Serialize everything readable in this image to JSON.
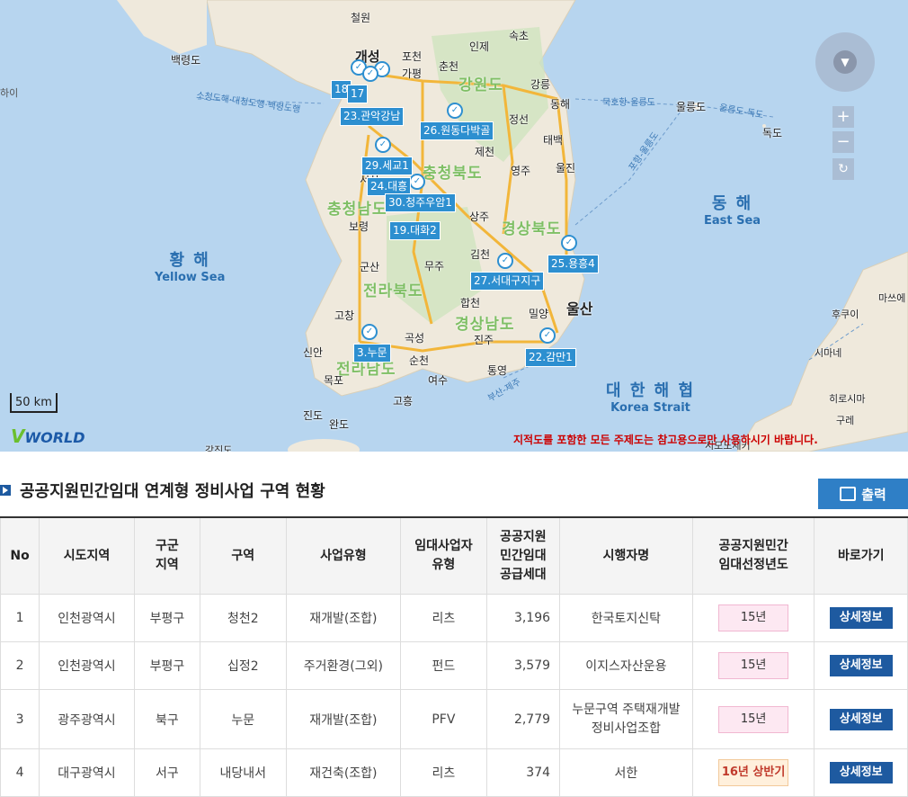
{
  "map": {
    "cities": [
      "철원",
      "개성",
      "포천",
      "인제",
      "속초",
      "가평",
      "춘천",
      "백령도",
      "강릉",
      "동해",
      "정선",
      "태백",
      "울진",
      "영주",
      "제천",
      "서산",
      "보령",
      "상주",
      "김천",
      "무주",
      "군산",
      "합천",
      "밀양",
      "울산",
      "고창",
      "곡성",
      "진주",
      "신안",
      "순천",
      "통영",
      "목포",
      "여수",
      "고흥",
      "진도",
      "완도",
      "울릉도",
      "독도",
      "마쓰에",
      "후쿠이",
      "시마네",
      "히로시마",
      "구레",
      "시모노세키",
      "강진도"
    ],
    "regions": [
      "강원도",
      "충청북도",
      "충청남도",
      "경상북도",
      "전라북도",
      "경상남도",
      "전라남도"
    ],
    "seas": [
      {
        "ko": "황 해",
        "en": "Yellow Sea"
      },
      {
        "ko": "동 해",
        "en": "East Sea"
      },
      {
        "ko": "대 한 해 협",
        "en": "Korea Strait"
      }
    ],
    "sea_routes": [
      "소청도해·대청도행·백령도행",
      "묵호항-울릉도",
      "울릉도-독도",
      "포항-울릉도",
      "부산-제주",
      "하이"
    ],
    "markers": [
      "18",
      "17",
      "23.관악강남",
      "26.원동다박골",
      "29.세교1",
      "24.대흥",
      "30.청주우암1",
      "19.대화2",
      "25.용흥4",
      "27.서대구지구",
      "3.누문",
      "22.감만1"
    ],
    "scale_label": "50 km",
    "logo": "VWORLD",
    "notice": "지적도를 포함한 모든 주제도는 참고용으로만 사용하시기 바랍니다."
  },
  "section": {
    "title": "공공지원민간임대 연계형 정비사업 구역 현황",
    "print_label": "출력"
  },
  "table": {
    "headers": [
      "No",
      "시도지역",
      "구군\n지역",
      "구역",
      "사업유형",
      "임대사업자\n유형",
      "공공지원\n민간임대\n공급세대",
      "시행자명",
      "공공지원민간\n임대선정년도",
      "바로가기"
    ],
    "rows": [
      {
        "no": "1",
        "sido": "인천광역시",
        "gugun": "부평구",
        "zone": "청천2",
        "biz": "재개발(조합)",
        "lessor": "리츠",
        "units": "3,196",
        "operator": "한국토지신탁",
        "year": "15년",
        "link": "상세정보"
      },
      {
        "no": "2",
        "sido": "인천광역시",
        "gugun": "부평구",
        "zone": "십정2",
        "biz": "주거환경(그외)",
        "lessor": "펀드",
        "units": "3,579",
        "operator": "이지스자산운용",
        "year": "15년",
        "link": "상세정보"
      },
      {
        "no": "3",
        "sido": "광주광역시",
        "gugun": "북구",
        "zone": "누문",
        "biz": "재개발(조합)",
        "lessor": "PFV",
        "units": "2,779",
        "operator": "누문구역 주택재개발\n정비사업조합",
        "year": "15년",
        "link": "상세정보"
      },
      {
        "no": "4",
        "sido": "대구광역시",
        "gugun": "서구",
        "zone": "내당내서",
        "biz": "재건축(조합)",
        "lessor": "리츠",
        "units": "374",
        "operator": "서한",
        "year": "16년 상반기",
        "link": "상세정보"
      }
    ]
  },
  "colors": {
    "accent": "#2f7fc6",
    "marker": "#2d8fd0",
    "region_text": "#7fbf65",
    "notice": "#cc0000"
  }
}
